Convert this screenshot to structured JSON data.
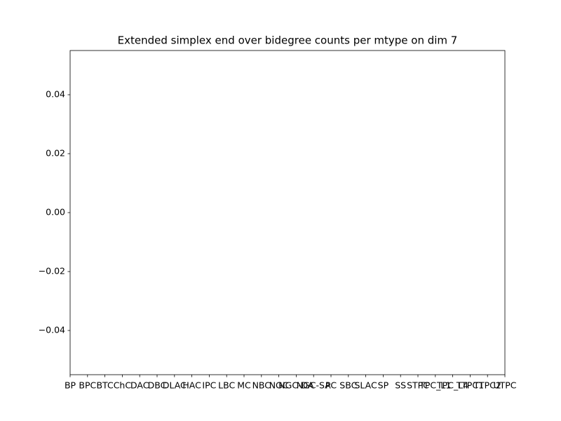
{
  "chart_data": {
    "type": "bar",
    "title": "Extended simplex end over bidegree counts per mtype on dim 7",
    "categories": [
      "BP",
      "BPC",
      "BTC",
      "ChC",
      "DAC",
      "DBC",
      "DLAC",
      "HAC",
      "IPC",
      "LBC",
      "MC",
      "NBC",
      "NGC",
      "NGC-DA",
      "NGC-SA",
      "PC",
      "SBC",
      "SLAC",
      "SP",
      "SS",
      "STPC",
      "TPC_L1",
      "TPC_L4",
      "TTPC1",
      "TTPC2",
      "UTPC"
    ],
    "values": [
      0,
      0,
      0,
      0,
      0,
      0,
      0,
      0,
      0,
      0,
      0,
      0,
      0,
      0,
      0,
      0,
      0,
      0,
      0,
      0,
      0,
      0,
      0,
      0,
      0,
      0
    ],
    "color": "#1f77b4",
    "ylim": [
      -0.055,
      0.055
    ],
    "yticks": [
      {
        "value": -0.04,
        "label": "−0.04"
      },
      {
        "value": -0.02,
        "label": "−0.02"
      },
      {
        "value": 0,
        "label": "0.00"
      },
      {
        "value": 0.02,
        "label": "0.02"
      },
      {
        "value": 0.04,
        "label": "0.04"
      }
    ],
    "grid": false
  }
}
